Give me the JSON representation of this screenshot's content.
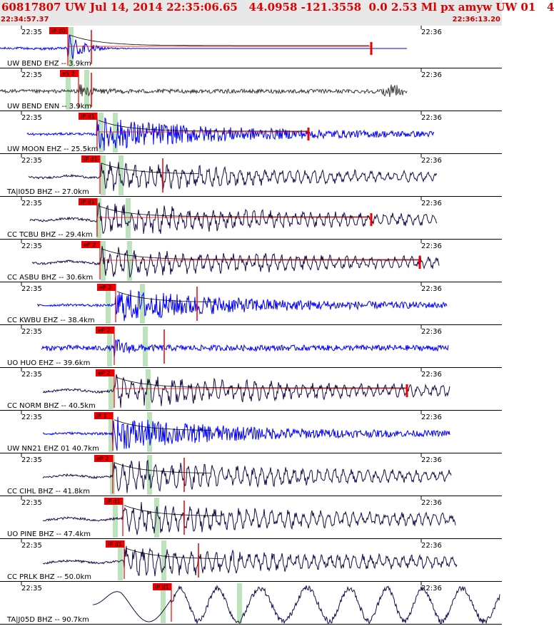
{
  "header": {
    "title": "60817807 UW Jul 14, 2014 22:35:06.65   44.0958 -121.3558  0.0 2.53 Ml px amyw UW 01   4",
    "start_time": "22:34:57.37",
    "end_time": "22:36:13.20"
  },
  "colors": {
    "header_bg": "#e8e8e8",
    "header_text": "#dd0000",
    "trace_blue": "#0000ff",
    "trace_dark": "#1a0a4a",
    "trace_gray": "#3a3a3a",
    "pick_red": "#ee0000",
    "window_green": "#bde3bd",
    "coda_curve": "#000000"
  },
  "chart_data": {
    "type": "line",
    "title": "60817807 UW Jul 14, 2014 22:35:06.65   44.0958 -121.3558  0.0 2.53 Ml px amyw UW 01   4",
    "x_axis": {
      "start": "22:34:57.37",
      "end": "22:36:13.20",
      "tick_labels": [
        "22:35",
        "22:36"
      ]
    },
    "traces": [
      {
        "label": "UW BEND EHZ -- 3.9km",
        "pick": "iP d0",
        "color": "blue",
        "style": "burst"
      },
      {
        "label": "UW BEND ENN -- 3.9km",
        "pick": "eS 2",
        "color": "gray",
        "style": "noisy"
      },
      {
        "label": "UW MOON EHZ -- 25.5km",
        "pick": "iP d1",
        "color": "blue",
        "style": "coda"
      },
      {
        "label": "TA|I05D BHZ -- 27.0km",
        "pick": "iP d1",
        "color": "dark",
        "style": "wave"
      },
      {
        "label": "CC TCBU BHZ -- 29.4km",
        "pick": "iP d1",
        "color": "dark",
        "style": "wave"
      },
      {
        "label": "CC ASBU BHZ -- 30.6km",
        "pick": "eP 2",
        "color": "dark",
        "style": "wave"
      },
      {
        "label": "CC KWBU EHZ -- 38.4km",
        "pick": "eP 2",
        "color": "blue",
        "style": "coda"
      },
      {
        "label": "UO HUO EHZ -- 39.6km",
        "pick": "eP 2",
        "color": "blue",
        "style": "noisy"
      },
      {
        "label": "CC NORM BHZ -- 40.5km",
        "pick": "eP 2",
        "color": "dark",
        "style": "wave"
      },
      {
        "label": "UW NN21 EHZ 01 40.7km",
        "pick": "iP 1",
        "color": "blue",
        "style": "coda"
      },
      {
        "label": "CC CIHL BHZ -- 41.8km",
        "pick": "eP 2",
        "color": "dark",
        "style": "wave"
      },
      {
        "label": "UO PINE BHZ -- 47.4km",
        "pick": "iP d1",
        "color": "dark",
        "style": "wave"
      },
      {
        "label": "CC PRLK BHZ -- 50.0km",
        "pick": "iP d1",
        "color": "dark",
        "style": "wave"
      },
      {
        "label": "TA|J05D BHZ -- 90.7km",
        "pick": "iP d1",
        "color": "dark",
        "style": "longwave"
      }
    ]
  }
}
